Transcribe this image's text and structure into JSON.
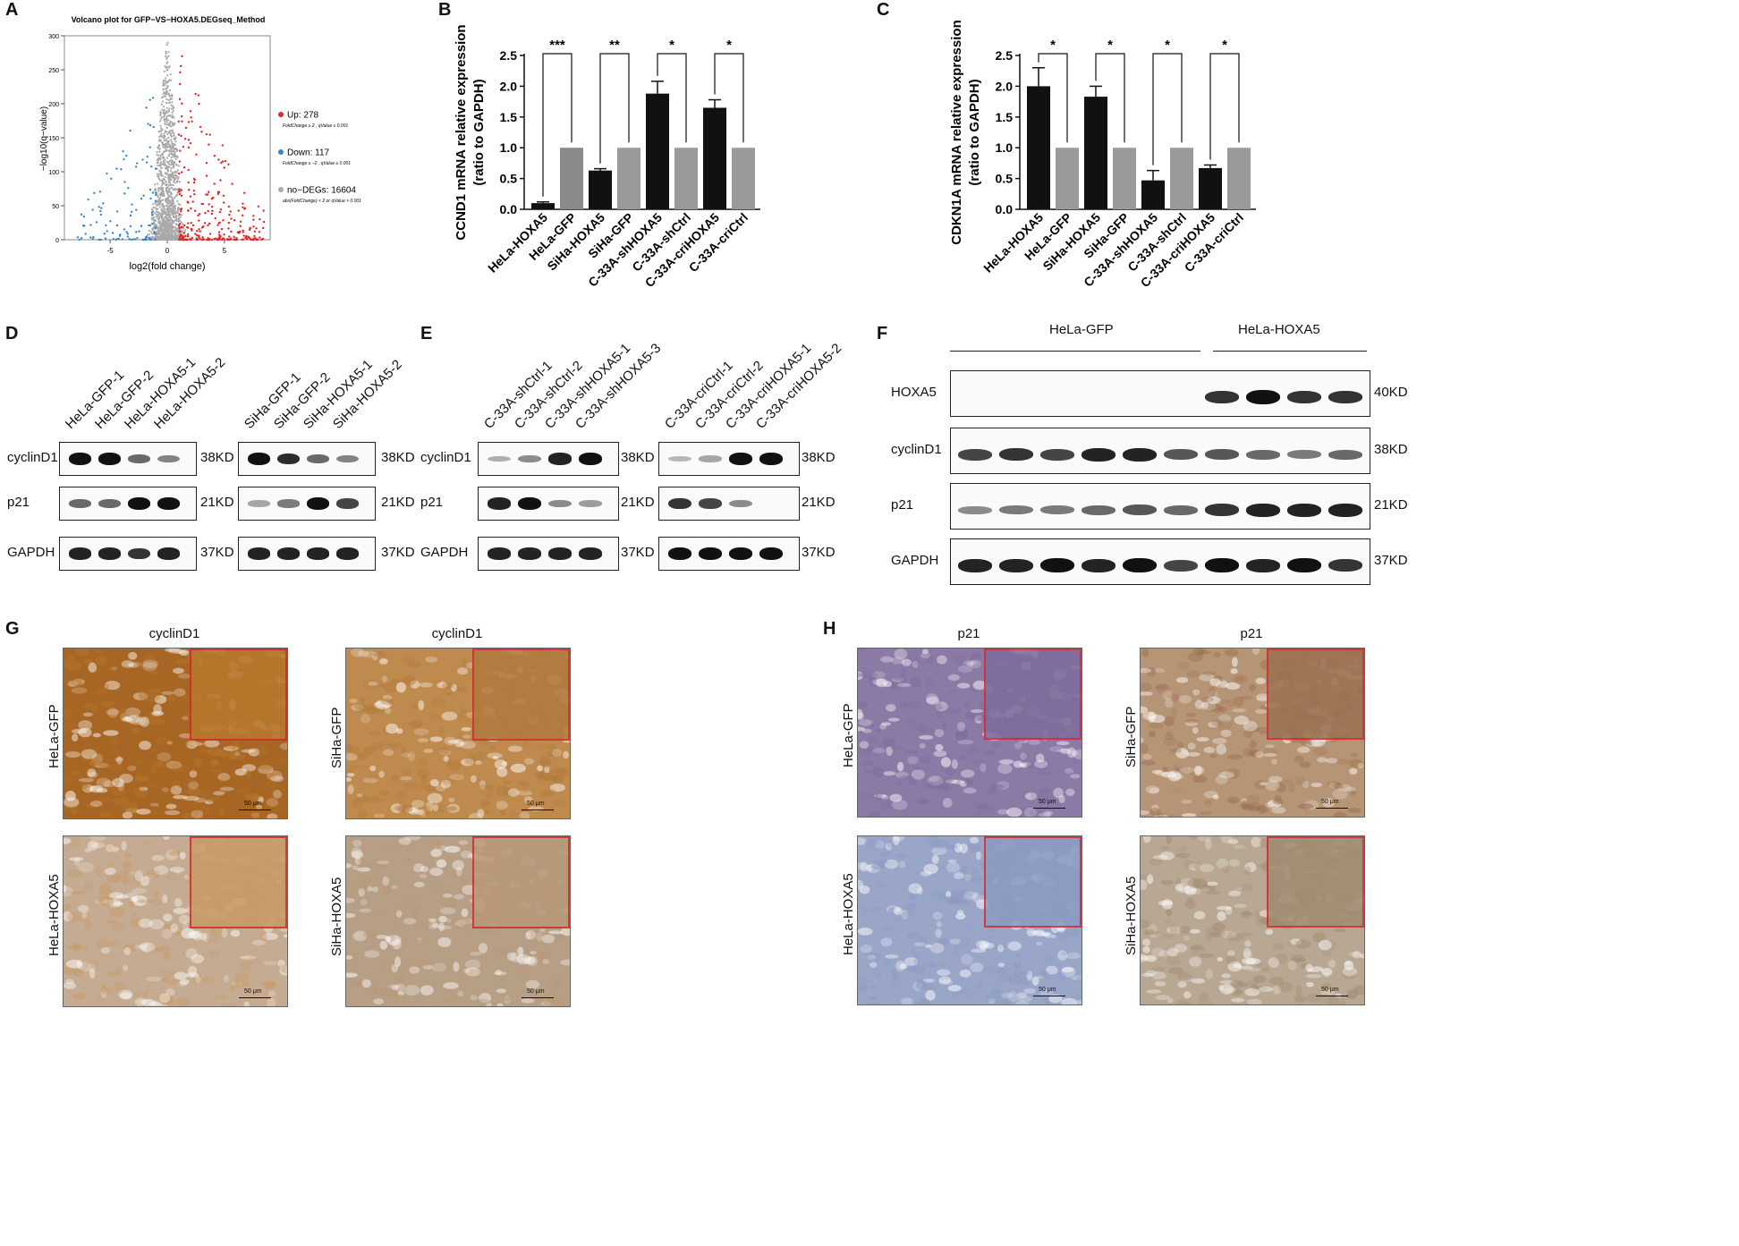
{
  "panels": {
    "A": "A",
    "B": "B",
    "C": "C",
    "D": "D",
    "E": "E",
    "F": "F",
    "G": "G",
    "H": "H"
  },
  "colors": {
    "up": "#e0272a",
    "down": "#3a86c8",
    "nodeg": "#a9a9a9",
    "bar_black": "#111111",
    "bar_gray": "#999999",
    "inset_border": "#d32a2a"
  },
  "chart_data": [
    {
      "type": "scatter",
      "title": "Volcano plot for GFP−VS−HOXA5.DEGseq_Method",
      "xlabel": "log2(fold change)",
      "ylabel": "−log10(q−value)",
      "xticks": [
        "-5",
        "0",
        "5"
      ],
      "yticks": [
        "0",
        "50",
        "100",
        "150",
        "200",
        "250",
        "300"
      ],
      "xlim": [
        -9,
        9
      ],
      "ylim": [
        0,
        300
      ],
      "legend": [
        {
          "label": "Up: 278",
          "note": "FoldChange ≥ 2 , qValue ≤ 0.001",
          "color": "#e0272a"
        },
        {
          "label": "Down: 117",
          "note": "FoldChange ≤ −2 , qValue ≤ 0.001",
          "color": "#3a86c8"
        },
        {
          "label": "no−DEGs: 16604",
          "note": "abs(FoldChange) < 2 or qValue > 0.001",
          "color": "#a9a9a9"
        }
      ],
      "legend_position": "right"
    },
    {
      "type": "bar",
      "ylabel_line1": "CCND1 mRNA relative expression",
      "ylabel_line2": "(ratio to GAPDH)",
      "categories": [
        "HeLa-HOXA5",
        "HeLa-GFP",
        "SiHa-HOXA5",
        "SiHa-GFP",
        "C-33A-shHOXA5",
        "C-33A-shCtrl",
        "C-33A-criHOXA5",
        "C-33A-criCtrl"
      ],
      "values": [
        0.1,
        1.0,
        0.63,
        1.0,
        1.88,
        1.0,
        1.65,
        1.0
      ],
      "errors": [
        0.02,
        0,
        0.03,
        0,
        0.2,
        0,
        0.13,
        0
      ],
      "bar_colors": [
        "#111111",
        "#8a8a8a",
        "#111111",
        "#9a9a9a",
        "#111111",
        "#9a9a9a",
        "#111111",
        "#9a9a9a"
      ],
      "yticks": [
        "0.0",
        "0.5",
        "1.0",
        "1.5",
        "2.0",
        "2.5"
      ],
      "ylim": [
        0,
        2.5
      ],
      "significance": [
        "***",
        "**",
        "*",
        "*"
      ]
    },
    {
      "type": "bar",
      "ylabel_line1": "CDKN1A mRNA relative expression",
      "ylabel_line2": "(ratio to GAPDH)",
      "categories": [
        "HeLa-HOXA5",
        "HeLa-GFP",
        "SiHa-HOXA5",
        "SiHa-GFP",
        "C-33A-shHOXA5",
        "C-33A-shCtrl",
        "C-33A-criHOXA5",
        "C-33A-criCtrl"
      ],
      "values": [
        2.0,
        1.0,
        1.83,
        1.0,
        0.47,
        1.0,
        0.67,
        1.0
      ],
      "errors": [
        0.3,
        0,
        0.17,
        0,
        0.16,
        0,
        0.05,
        0
      ],
      "bar_colors": [
        "#111111",
        "#9a9a9a",
        "#111111",
        "#9a9a9a",
        "#111111",
        "#9a9a9a",
        "#111111",
        "#9a9a9a"
      ],
      "yticks": [
        "0.0",
        "0.5",
        "1.0",
        "1.5",
        "2.0",
        "2.5"
      ],
      "ylim": [
        0,
        2.5
      ],
      "significance": [
        "*",
        "*",
        "*",
        "*"
      ]
    }
  ],
  "blots": {
    "D": {
      "left_lanes": [
        "HeLa-GFP-1",
        "HeLa-GFP-2",
        "HeLa-HOXA5-1",
        "HeLa-HOXA5-2"
      ],
      "right_lanes": [
        "SiHa-GFP-1",
        "SiHa-GFP-2",
        "SiHa-HOXA5-1",
        "SiHa-HOXA5-2"
      ],
      "rows": [
        "cyclinD1",
        "p21",
        "GAPDH"
      ],
      "kd": [
        "38KD",
        "21KD",
        "37KD"
      ],
      "intensity_left": [
        [
          1,
          1,
          0.5,
          0.35
        ],
        [
          0.5,
          0.5,
          1,
          1
        ],
        [
          0.9,
          0.9,
          0.8,
          0.9
        ]
      ],
      "intensity_right": [
        [
          1,
          0.85,
          0.5,
          0.35
        ],
        [
          0.15,
          0.4,
          1,
          0.7
        ],
        [
          0.9,
          0.9,
          0.9,
          0.9
        ]
      ]
    },
    "E": {
      "left_lanes": [
        "C-33A-shCtrl-1",
        "C-33A-shCtrl-2",
        "C-33A-shHOXA5-1",
        "C-33A-shHOXA5-3"
      ],
      "right_lanes": [
        "C-33A-criCtrl-1",
        "C-33A-criCtrl-2",
        "C-33A-criHOXA5-1",
        "C-33A-criHOXA5-2"
      ],
      "rows": [
        "cyclinD1",
        "p21",
        "GAPDH"
      ],
      "kd": [
        "38KD",
        "21KD",
        "37KD"
      ],
      "intensity_left": [
        [
          0.1,
          0.3,
          0.9,
          1
        ],
        [
          0.9,
          1,
          0.3,
          0.2
        ],
        [
          0.9,
          0.9,
          0.9,
          0.9
        ]
      ],
      "intensity_right": [
        [
          0.05,
          0.15,
          1,
          1
        ],
        [
          0.8,
          0.7,
          0.3,
          0.0
        ],
        [
          1,
          1,
          1,
          1
        ]
      ]
    },
    "F": {
      "group_left": "HeLa-GFP",
      "group_right": "HeLa-HOXA5",
      "rows": [
        "HOXA5",
        "cyclinD1",
        "p21",
        "GAPDH"
      ],
      "kd": [
        "40KD",
        "38KD",
        "21KD",
        "37KD"
      ],
      "intensity": [
        [
          0,
          0,
          0,
          0,
          0,
          0,
          0.8,
          1,
          0.8,
          0.8
        ],
        [
          0.7,
          0.8,
          0.7,
          0.9,
          0.9,
          0.6,
          0.6,
          0.5,
          0.4,
          0.5
        ],
        [
          0.3,
          0.4,
          0.4,
          0.5,
          0.6,
          0.5,
          0.8,
          0.9,
          0.9,
          0.9
        ],
        [
          0.9,
          0.9,
          1,
          0.9,
          1,
          0.7,
          1,
          0.9,
          1,
          0.8
        ]
      ]
    }
  },
  "ihc": {
    "G": {
      "col_titles": [
        "cyclinD1",
        "cyclinD1"
      ],
      "row_labels_left": [
        "HeLa-GFP",
        "HeLa-HOXA5"
      ],
      "row_labels_right": [
        "SiHa-GFP",
        "SiHa-HOXA5"
      ],
      "scale_label": "50 μm",
      "stain": [
        "#b8782d",
        "#c89a66",
        "#b07a3e",
        "#b89878"
      ],
      "background": [
        "#a76623",
        "#c4ab91",
        "#bf8a4d",
        "#b79f86"
      ]
    },
    "H": {
      "col_titles": [
        "p21",
        "p21"
      ],
      "row_labels_left": [
        "HeLa-GFP",
        "HeLa-HOXA5"
      ],
      "row_labels_right": [
        "SiHa-GFP",
        "SiHa-HOXA5"
      ],
      "scale_label": "50 μm",
      "stain": [
        "#7d6c9c",
        "#8a9ac0",
        "#9a7050",
        "#a08a70"
      ],
      "background": [
        "#8c7aa6",
        "#9aa6c8",
        "#b69576",
        "#b8a792"
      ]
    }
  }
}
